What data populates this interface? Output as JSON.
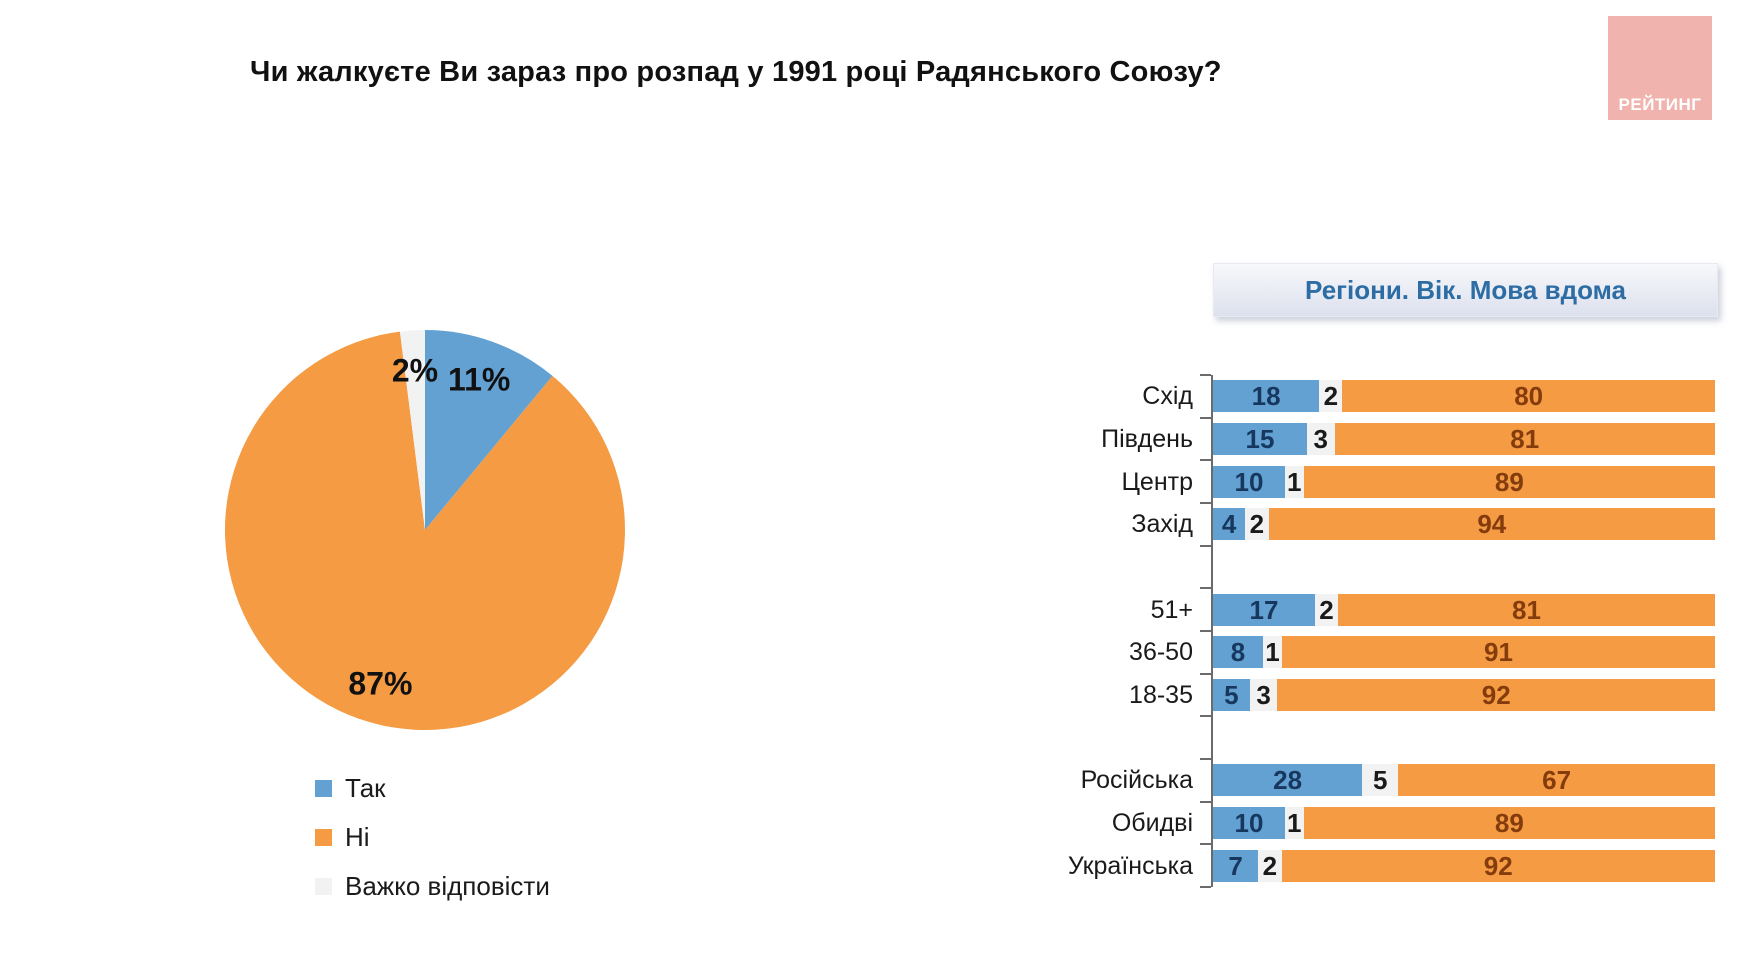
{
  "title": "Чи жалкуєте Ви зараз про розпад у 1991 році Радянського Союзу?",
  "logo": {
    "text": "РЕЙТИНГ"
  },
  "colors": {
    "yes_blue": "#62a1d2",
    "no_orange": "#f49b43",
    "dk_gray": "#f2f2f2",
    "header_text_blue": "#2d6da3",
    "logo_pink": "#f1b3ad",
    "axis_gray": "#6b6b6b"
  },
  "legend": [
    {
      "label": "Так",
      "color": "#62a1d2"
    },
    {
      "label": "Ні",
      "color": "#f49b43"
    },
    {
      "label": "Важко відповісти",
      "color": "#f2f2f2"
    }
  ],
  "breakdown": {
    "header": "Регіони. Вік. Мова вдома"
  },
  "chart_data": [
    {
      "type": "pie",
      "title": "Чи жалкуєте Ви зараз про розпад у 1991 році Радянського Союзу?",
      "series": [
        "Так",
        "Ні",
        "Важко відповісти"
      ],
      "values": [
        11,
        87,
        2
      ],
      "labels": [
        "11%",
        "87%",
        "2%"
      ],
      "colors": [
        "#62a1d2",
        "#f49b43",
        "#f2f2f2"
      ],
      "start_angle_deg": -90,
      "direction": "clockwise",
      "legend_position": "bottom-left"
    },
    {
      "type": "bar",
      "stacked": true,
      "orientation": "horizontal",
      "title": "Регіони. Вік. Мова вдома",
      "series": [
        "Так",
        "Важко відповісти",
        "Ні"
      ],
      "series_colors": [
        "#62a1d2",
        "#f2f2f2",
        "#f49b43"
      ],
      "value_label_colors": [
        "#17375e",
        "#1a1a1a",
        "#843c0c"
      ],
      "xlim": [
        0,
        100
      ],
      "groups": [
        {
          "categories": [
            "Схід",
            "Південь",
            "Центр",
            "Захід"
          ],
          "rows": [
            [
              18,
              2,
              80
            ],
            [
              15,
              3,
              81
            ],
            [
              10,
              1,
              89
            ],
            [
              4,
              2,
              94
            ]
          ]
        },
        {
          "categories": [
            "51+",
            "36-50",
            "18-35"
          ],
          "rows": [
            [
              17,
              2,
              81
            ],
            [
              8,
              1,
              91
            ],
            [
              5,
              3,
              92
            ]
          ]
        },
        {
          "categories": [
            "Російська",
            "Обидві",
            "Українська"
          ],
          "rows": [
            [
              28,
              5,
              67
            ],
            [
              10,
              1,
              89
            ],
            [
              7,
              2,
              92
            ]
          ]
        }
      ]
    }
  ]
}
